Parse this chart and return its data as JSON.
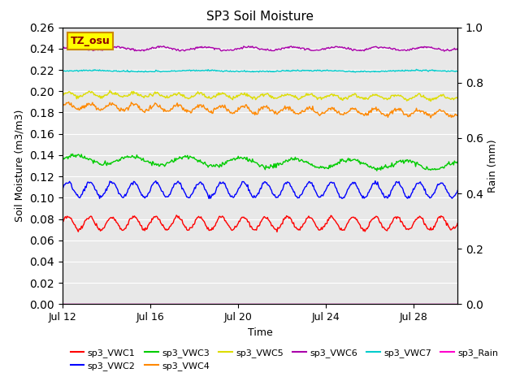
{
  "title": "SP3 Soil Moisture",
  "xlabel": "Time",
  "ylabel_left": "Soil Moisture (m3/m3)",
  "ylabel_right": "Rain (mm)",
  "ylim_left": [
    0.0,
    0.26
  ],
  "ylim_right": [
    0.0,
    1.0
  ],
  "yticks_left": [
    0.0,
    0.02,
    0.04,
    0.06,
    0.08,
    0.1,
    0.12,
    0.14,
    0.16,
    0.18,
    0.2,
    0.22,
    0.24,
    0.26
  ],
  "yticks_right": [
    0.0,
    0.2,
    0.4,
    0.6,
    0.8,
    1.0
  ],
  "xtick_labels": [
    "Jul 12",
    "Jul 16",
    "Jul 20",
    "Jul 24",
    "Jul 28"
  ],
  "bg_color": "#e8e8e8",
  "series": [
    {
      "name": "sp3_VWC1",
      "color": "#ff0000",
      "mean": 0.076,
      "amp": 0.006,
      "period": 1.0,
      "trend": 0.0,
      "noise": 0.0008
    },
    {
      "name": "sp3_VWC2",
      "color": "#0000ff",
      "mean": 0.108,
      "amp": 0.007,
      "period": 1.0,
      "trend": -0.001,
      "noise": 0.0008
    },
    {
      "name": "sp3_VWC3",
      "color": "#00cc00",
      "mean": 0.136,
      "amp": 0.004,
      "period": 2.5,
      "trend": -0.006,
      "noise": 0.001
    },
    {
      "name": "sp3_VWC4",
      "color": "#ff8800",
      "mean": 0.186,
      "amp": 0.003,
      "period": 1.0,
      "trend": -0.007,
      "noise": 0.001
    },
    {
      "name": "sp3_VWC5",
      "color": "#dddd00",
      "mean": 0.197,
      "amp": 0.002,
      "period": 1.0,
      "trend": -0.003,
      "noise": 0.0008
    },
    {
      "name": "sp3_VWC6",
      "color": "#aa00aa",
      "mean": 0.24,
      "amp": 0.0015,
      "period": 2.0,
      "trend": 0.0,
      "noise": 0.0005
    },
    {
      "name": "sp3_VWC7",
      "color": "#00cccc",
      "mean": 0.219,
      "amp": 0.0005,
      "period": 5.0,
      "trend": 0.0,
      "noise": 0.0003
    },
    {
      "name": "sp3_Rain",
      "color": "#ff00cc",
      "mean": 0.0,
      "amp": 0.0,
      "period": 1.0,
      "trend": 0.0,
      "noise": 0.0
    }
  ],
  "legend_row1": [
    "sp3_VWC1",
    "sp3_VWC2",
    "sp3_VWC3",
    "sp3_VWC4",
    "sp3_VWC5",
    "sp3_VWC6"
  ],
  "legend_row2": [
    "sp3_VWC7",
    "sp3_Rain"
  ],
  "watermark_text": "TZ_osu",
  "watermark_bg": "#ffff00",
  "watermark_border": "#cc8800",
  "n_points": 500,
  "n_days": 18.0
}
